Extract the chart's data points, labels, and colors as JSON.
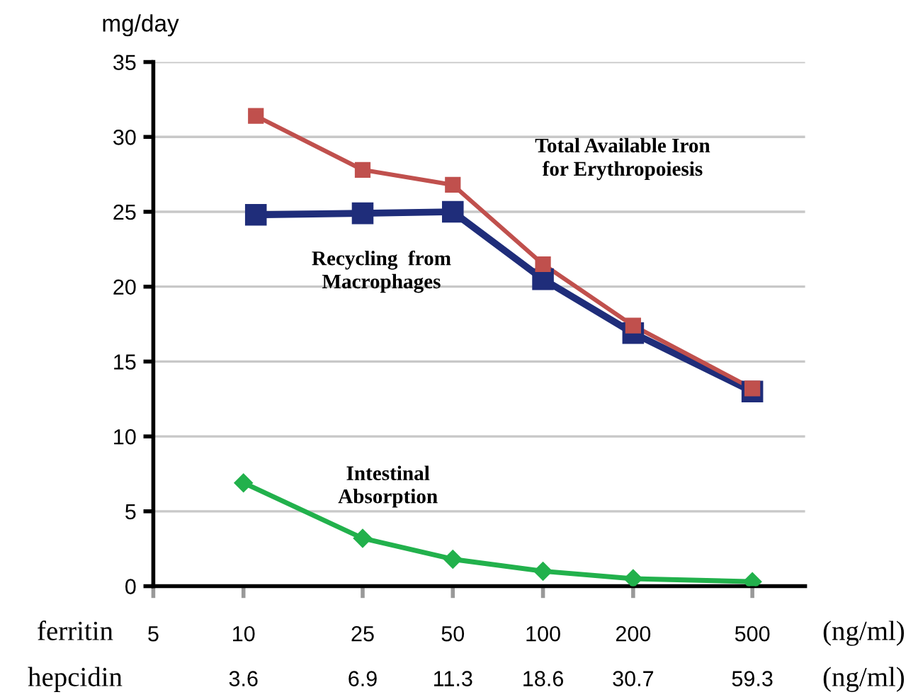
{
  "chart_data": {
    "type": "line",
    "ylabel": "mg/day",
    "xlabel": "ferritin",
    "log": "x",
    "grid": "y",
    "legend": false,
    "xlim": [
      5,
      750
    ],
    "xticks": [
      5,
      10,
      25,
      50,
      100,
      200,
      500
    ],
    "ylim": [
      0,
      35
    ],
    "yticks": [
      0,
      5,
      10,
      15,
      20,
      25,
      30,
      35
    ],
    "annotations": [
      "(ng/ml)",
      "(ng/ml)",
      "hepcidin",
      "3.6",
      "6.9",
      "11.3",
      "18.6",
      "30.7",
      "59.3"
    ],
    "series": [
      {
        "name": "Total Available Iron\nfor Erythropoiesis",
        "color": "#c0504d",
        "marker": "square",
        "x": [
          11,
          25,
          50,
          100,
          200,
          500
        ],
        "values": [
          31.4,
          27.8,
          26.8,
          21.5,
          17.4,
          13.2
        ]
      },
      {
        "name": "Recycling  from\nMacrophages",
        "color": "#1f2d7a",
        "marker": "square",
        "x": [
          11,
          25,
          50,
          100,
          200,
          500
        ],
        "values": [
          24.8,
          24.9,
          25.0,
          20.5,
          16.9,
          13.0
        ]
      },
      {
        "name": "Intestinal\nAbsorption",
        "color": "#22b14c",
        "marker": "diamond",
        "x": [
          10,
          25,
          50,
          100,
          200,
          500
        ],
        "values": [
          6.9,
          3.2,
          1.8,
          1.0,
          0.5,
          0.3
        ]
      }
    ]
  }
}
